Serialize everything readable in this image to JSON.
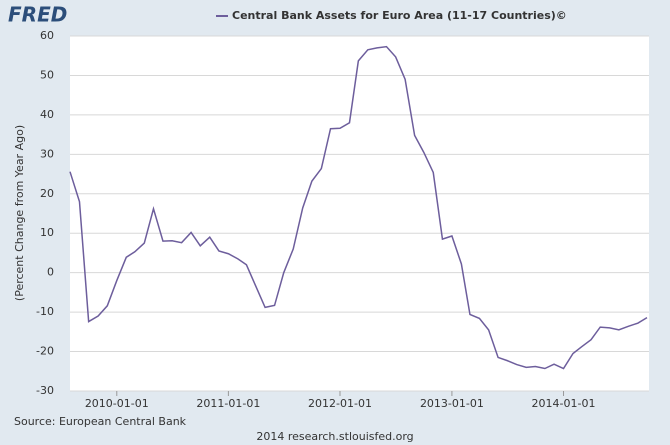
{
  "logo": "FRED",
  "chart_data": {
    "type": "line",
    "y_label": "(Percent Change from Year Ago)",
    "source": "Source: European Central Bank",
    "footer": "2014 research.stlouisfed.org",
    "x": [
      "2009-08-01",
      "2009-09-01",
      "2009-10-01",
      "2009-11-01",
      "2009-12-01",
      "2010-01-01",
      "2010-02-01",
      "2010-03-01",
      "2010-04-01",
      "2010-05-01",
      "2010-06-01",
      "2010-07-01",
      "2010-08-01",
      "2010-09-01",
      "2010-10-01",
      "2010-11-01",
      "2010-12-01",
      "2011-01-01",
      "2011-02-01",
      "2011-03-01",
      "2011-04-01",
      "2011-05-01",
      "2011-06-01",
      "2011-07-01",
      "2011-08-01",
      "2011-09-01",
      "2011-10-01",
      "2011-11-01",
      "2011-12-01",
      "2012-01-01",
      "2012-02-01",
      "2012-03-01",
      "2012-04-01",
      "2012-05-01",
      "2012-06-01",
      "2012-07-01",
      "2012-08-01",
      "2012-09-01",
      "2012-10-01",
      "2012-11-01",
      "2012-12-01",
      "2013-01-01",
      "2013-02-01",
      "2013-03-01",
      "2013-04-01",
      "2013-05-01",
      "2013-06-01",
      "2013-07-01",
      "2013-08-01",
      "2013-09-01",
      "2013-10-01",
      "2013-11-01",
      "2013-12-01",
      "2014-01-01",
      "2014-02-01",
      "2014-03-01",
      "2014-04-01",
      "2014-05-01",
      "2014-06-01",
      "2014-07-01",
      "2014-08-01",
      "2014-09-01",
      "2014-10-01"
    ],
    "series": [
      {
        "name": "Central Bank Assets for Euro Area (11-17 Countries)©",
        "color": "#6d5e9c",
        "values": [
          25.6,
          18,
          -12.4,
          -11,
          -8.4,
          -2,
          3.9,
          5.3,
          7.5,
          16.2,
          8,
          8.1,
          7.6,
          10.2,
          6.8,
          9,
          5.5,
          4.8,
          3.5,
          2,
          -3.5,
          -8.8,
          -8.3,
          0,
          6,
          16.4,
          23.2,
          26.4,
          36.5,
          36.6,
          38,
          53.7,
          56.5,
          57,
          57.3,
          54.7,
          49,
          34.8,
          30.5,
          25.4,
          8.5,
          9.3,
          2.2,
          -10.6,
          -11.6,
          -14.5,
          -21.5,
          -22.3,
          -23.3,
          -24,
          -23.8,
          -24.3,
          -23.2,
          -24.3,
          -20.5,
          -18.8,
          -17,
          -13.8,
          -14,
          -14.5,
          -13.6,
          -12.8,
          -11.4
        ]
      }
    ],
    "xlim": [
      "2009-08-01",
      "2014-10-01"
    ],
    "xticks": [
      "2010-01-01",
      "2011-01-01",
      "2012-01-01",
      "2013-01-01",
      "2014-01-01"
    ],
    "ylim": [
      -30,
      60
    ],
    "yticks": [
      -30,
      -20,
      -10,
      0,
      10,
      20,
      30,
      40,
      50,
      60
    ],
    "grid": true
  }
}
